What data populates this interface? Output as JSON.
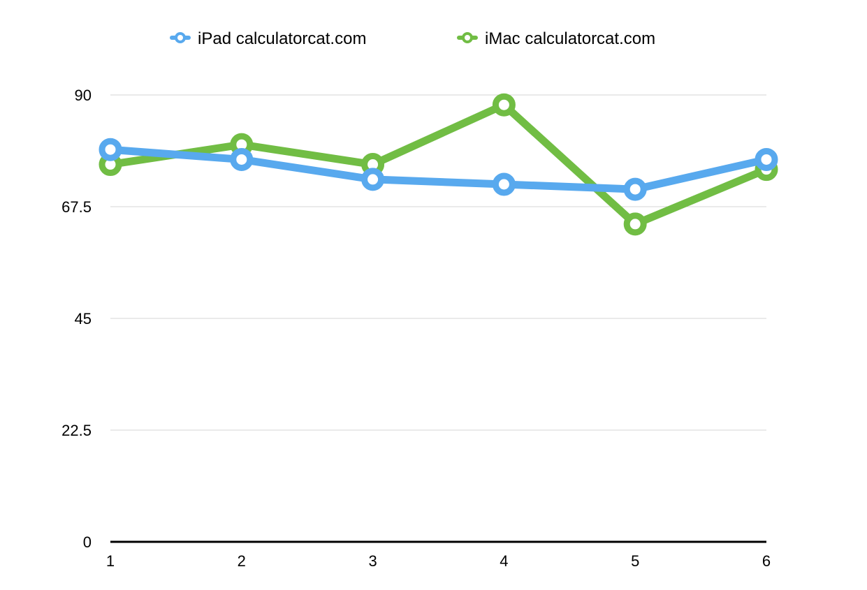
{
  "chart_data": {
    "type": "line",
    "x": [
      1,
      2,
      3,
      4,
      5,
      6
    ],
    "series": [
      {
        "name": "iPad calculatorcat.com",
        "color": "#58a9ee",
        "values": [
          79,
          77,
          73,
          72,
          71,
          77
        ]
      },
      {
        "name": "iMac calculatorcat.com",
        "color": "#71bd44",
        "values": [
          76,
          80,
          76,
          88,
          64,
          75
        ]
      }
    ],
    "yticks": [
      "0",
      "22.5",
      "45",
      "67.5",
      "90"
    ],
    "xticks": [
      "1",
      "2",
      "3",
      "4",
      "5",
      "6"
    ],
    "ylim": [
      0,
      90
    ],
    "grid": true,
    "legend_position": "top-center",
    "title": "",
    "xlabel": "",
    "ylabel": ""
  }
}
